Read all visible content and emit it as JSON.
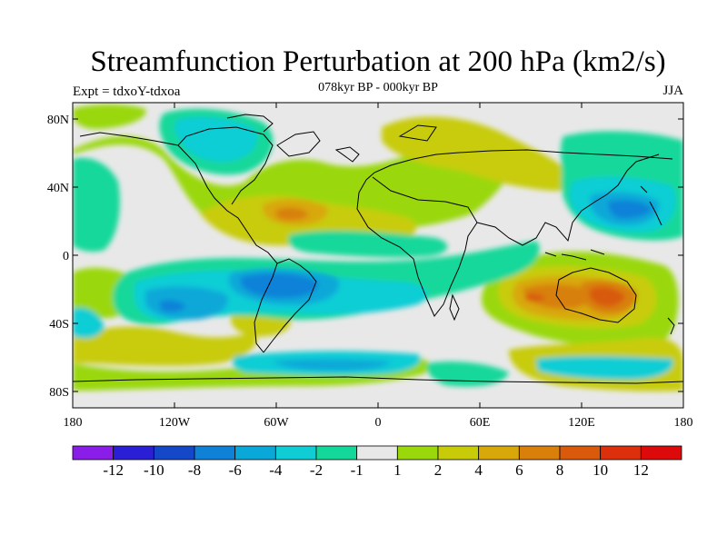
{
  "title": "Streamfunction Perturbation at 200 hPa (km2/s)",
  "subtitle": "078kyr BP - 000kyr BP",
  "left_label": "Expt = tdxoY-tdxoa",
  "right_label": "JJA",
  "lat_ticks": [
    "80N",
    "40N",
    "0",
    "40S",
    "80S"
  ],
  "lon_ticks": [
    "180",
    "120W",
    "60W",
    "0",
    "60E",
    "120E",
    "180"
  ],
  "colorbar": {
    "labels": [
      "-12",
      "-10",
      "-8",
      "-6",
      "-4",
      "-2",
      "-1",
      "1",
      "2",
      "4",
      "6",
      "8",
      "10",
      "12"
    ],
    "colors": [
      "#8a1ee8",
      "#2b1fd6",
      "#1448c8",
      "#0f82d8",
      "#0aa8d8",
      "#10cdd5",
      "#13d89a",
      "#e8e8e8",
      "#9ad80c",
      "#c8cc08",
      "#d8a80a",
      "#d8800a",
      "#d85a0a",
      "#dc300c",
      "#dc0a0a"
    ]
  },
  "colors": {
    "background_field": "#e8e8e8",
    "coast": "#000000"
  }
}
